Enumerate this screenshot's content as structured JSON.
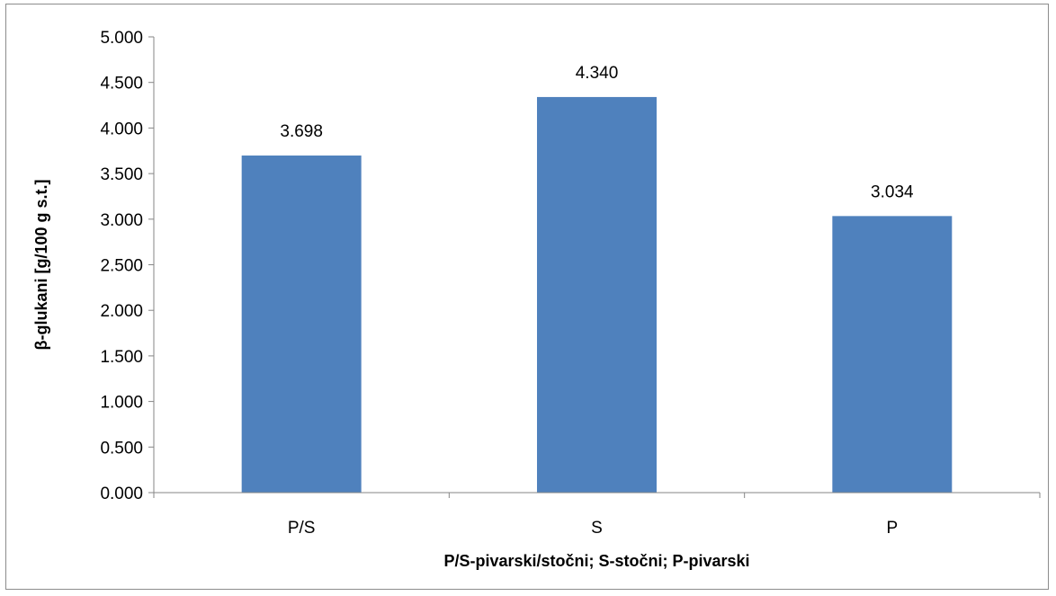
{
  "chart_data": {
    "type": "bar",
    "categories": [
      "P/S",
      "S",
      "P"
    ],
    "values": [
      3.698,
      4.34,
      3.034
    ],
    "data_labels": [
      "3.698",
      "4.340",
      "3.034"
    ],
    "title": "",
    "xlabel": "P/S-pivarski/stočni; S-stočni; P-pivarski",
    "ylabel": "β-glukani [g/100 g s.t.]",
    "ylim": [
      0,
      5
    ],
    "yticks": [
      0,
      0.5,
      1,
      1.5,
      2,
      2.5,
      3,
      3.5,
      4,
      4.5,
      5
    ],
    "ytick_labels": [
      "0.000",
      "0.500",
      "1.000",
      "1.500",
      "2.000",
      "2.500",
      "3.000",
      "3.500",
      "4.000",
      "4.500",
      "5.000"
    ],
    "bar_color": "#4f81bd",
    "grid": false,
    "legend": "none"
  }
}
